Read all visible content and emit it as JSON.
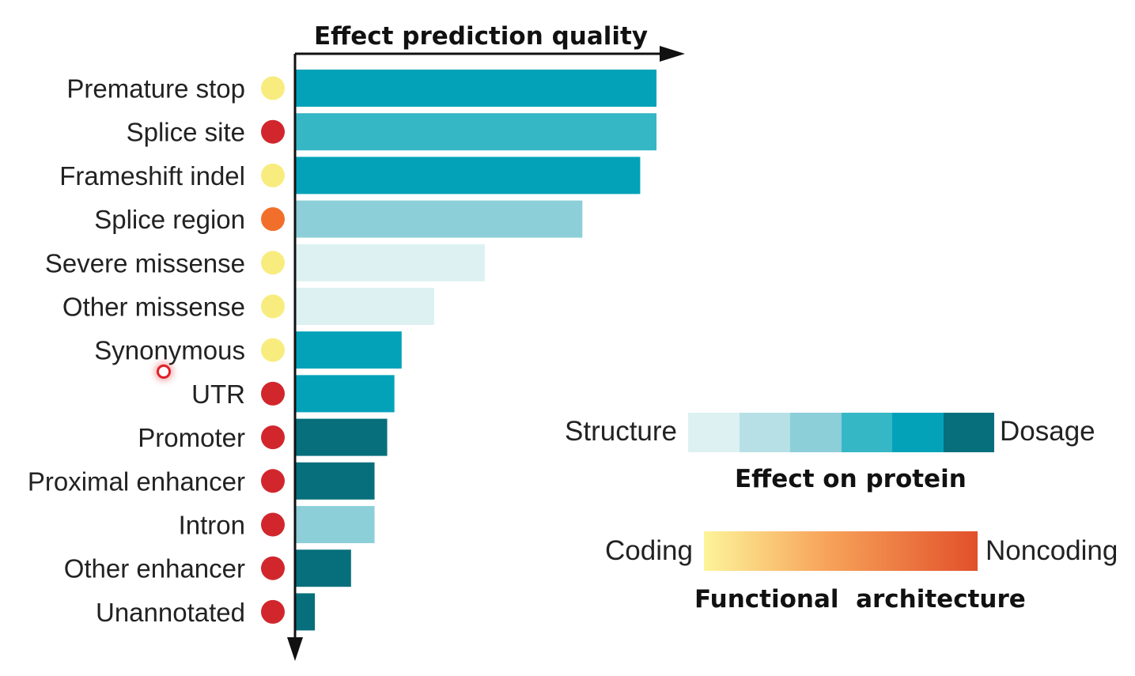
{
  "chart_data": {
    "type": "bar",
    "orientation": "horizontal",
    "title": "Effect prediction quality",
    "xlim": [
      0,
      100
    ],
    "categories": [
      "Premature stop",
      "Splice site",
      "Frameshift indel",
      "Splice region",
      "Severe missense",
      "Other missense",
      "Synonymous",
      "UTR",
      "Promoter",
      "Proximal enhancer",
      "Intron",
      "Other enhancer",
      "Unannotated"
    ],
    "values": [
      100,
      100,
      95.5,
      79.5,
      52.5,
      38.5,
      29.5,
      27.5,
      25.5,
      22,
      22,
      15.5,
      5.5
    ],
    "bar_effect_level": [
      5,
      4,
      5,
      3,
      1,
      1,
      5,
      5,
      6,
      6,
      3,
      6,
      6
    ],
    "dot_architecture": [
      "coding",
      "noncoding",
      "coding",
      "mid",
      "coding",
      "coding",
      "coding",
      "noncoding",
      "noncoding",
      "noncoding",
      "noncoding",
      "noncoding",
      "noncoding"
    ],
    "dot_colors": {
      "coding": "#f8ec7f",
      "mid": "#f26f2b",
      "noncoding": "#d2262d"
    },
    "effect_scale_colors": [
      "#ddf1f2",
      "#b6e0e5",
      "#8ccfd9",
      "#35b7c5",
      "#04a2b9",
      "#076f7c"
    ]
  },
  "legend_effect": {
    "left_label": "Structure",
    "right_label": "Dosage",
    "title": "Effect on protein"
  },
  "legend_architecture": {
    "left_label": "Coding",
    "right_label": "Noncoding",
    "title": "Functional  architecture",
    "gradient_start": "#fdf49a",
    "gradient_mid": "#f7a35a",
    "gradient_end": "#e2502a"
  }
}
